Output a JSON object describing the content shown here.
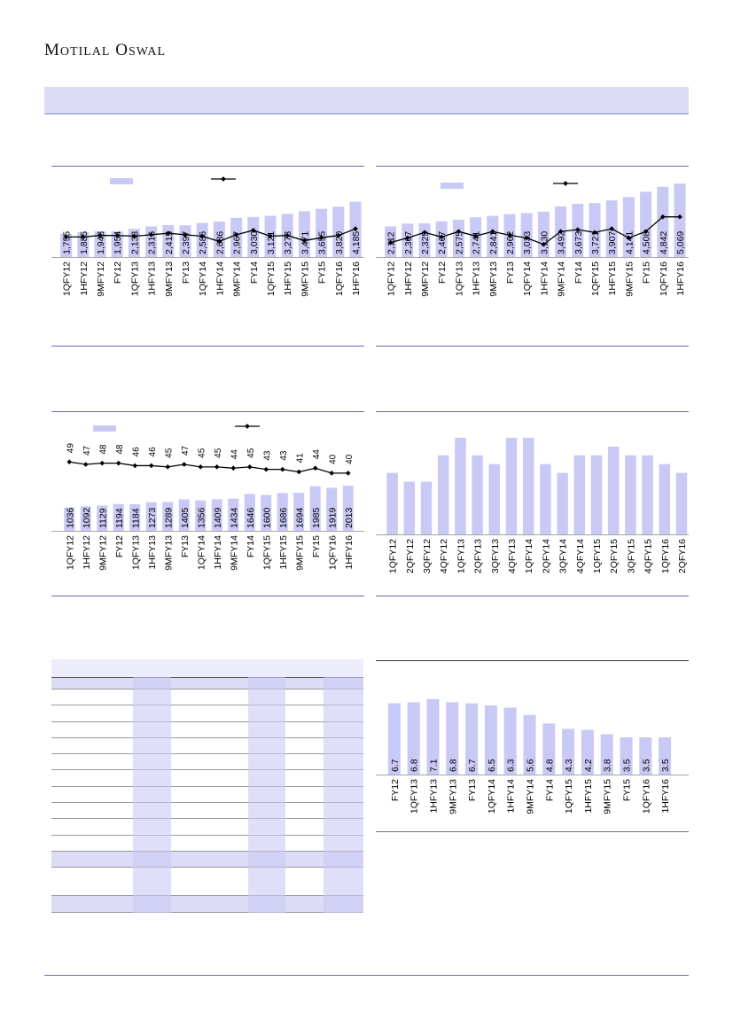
{
  "header": {
    "brand_first_1": "M",
    "brand_rest_1": "OTILAL",
    "brand_first_2": "O",
    "brand_rest_2": "SWAL"
  },
  "colors": {
    "bar": "#c9c9f5",
    "line": "#000000",
    "rule": "#6b6bb0",
    "band": "#dcdcf6"
  },
  "charts": [
    {
      "id": "chart1",
      "chart_data": {
        "type": "bar",
        "categories": [
          "1QFY12",
          "1HFY12",
          "9MFY12",
          "FY12",
          "1QFY13",
          "1HFY13",
          "9MFY13",
          "FY13",
          "1QFY14",
          "1HFY14",
          "9MFY14",
          "FY14",
          "1QFY15",
          "1HFY15",
          "9MFY15",
          "FY15",
          "1QFY16",
          "1HFY16"
        ],
        "values": [
          1755,
          1885,
          1943,
          1954,
          2133,
          2316,
          2415,
          2397,
          2586,
          2686,
          2967,
          3030,
          3121,
          3273,
          3471,
          3655,
          3820,
          4185
        ],
        "labels": [
          "1,755",
          "1,885",
          "1,943",
          "1,954",
          "2,133",
          "2,316",
          "2,415",
          "2,397",
          "2,586",
          "2,686",
          "2,967",
          "3,030",
          "3,121",
          "3,273",
          "3,471",
          "3,655",
          "3,820",
          "4,185"
        ],
        "line_values": [
          51,
          51,
          53,
          53,
          52,
          54,
          56,
          54,
          52,
          45,
          54,
          60,
          52,
          53,
          46,
          50,
          53,
          62
        ],
        "line_labels": [],
        "ylim": [
          0,
          4500
        ],
        "line_ylim": [
          0,
          100
        ]
      }
    },
    {
      "id": "chart2",
      "chart_data": {
        "type": "bar",
        "categories": [
          "1QFY12",
          "1HFY12",
          "9MFY12",
          "FY12",
          "1QFY13",
          "1HFY13",
          "9MFY13",
          "FY13",
          "1QFY14",
          "1HFY14",
          "9MFY14",
          "FY14",
          "1QFY15",
          "1HFY15",
          "9MFY15",
          "FY15",
          "1QFY16",
          "1HFY16"
        ],
        "values": [
          2112,
          2307,
          2325,
          2467,
          2575,
          2741,
          2841,
          2962,
          3033,
          3130,
          3492,
          3673,
          3721,
          3907,
          4141,
          4508,
          4842,
          5069
        ],
        "labels": [
          "2,112",
          "2,307",
          "2,325",
          "2,467",
          "2,575",
          "2,741",
          "2,841",
          "2,962",
          "3,033",
          "3,130",
          "3,492",
          "3,673",
          "3,721",
          "3,907",
          "4,141",
          "4,508",
          "4,842",
          "5,069"
        ],
        "line_values": [
          40,
          45,
          51,
          46,
          52,
          47,
          52,
          48,
          45,
          38,
          52,
          54,
          51,
          55,
          45,
          52,
          68,
          68
        ],
        "line_labels": [],
        "ylim": [
          0,
          5200
        ],
        "line_ylim": [
          0,
          100
        ]
      }
    },
    {
      "id": "chart3",
      "chart_data": {
        "type": "bar",
        "categories": [
          "1QFY12",
          "1HFY12",
          "9MFY12",
          "FY12",
          "1QFY13",
          "1HFY13",
          "9MFY13",
          "FY13",
          "1QFY14",
          "1HFY14",
          "9MFY14",
          "FY14",
          "1QFY15",
          "1HFY15",
          "9MFY15",
          "FY15",
          "1QFY16",
          "1HFY16"
        ],
        "values": [
          1036,
          1092,
          1129,
          1194,
          1184,
          1273,
          1289,
          1405,
          1356,
          1409,
          1434,
          1646,
          1600,
          1686,
          1694,
          1985,
          1919,
          2013
        ],
        "labels": [
          "1036",
          "1092",
          "1129",
          "1194",
          "1184",
          "1273",
          "1289",
          "1405",
          "1356",
          "1409",
          "1434",
          "1646",
          "1600",
          "1686",
          "1694",
          "1985",
          "1919",
          "2013"
        ],
        "line_values": [
          49,
          47,
          48,
          48,
          46,
          46,
          45,
          47,
          45,
          45,
          44,
          45,
          43,
          43,
          41,
          44,
          40,
          40
        ],
        "line_labels": [
          "49",
          "47",
          "48",
          "48",
          "46",
          "46",
          "45",
          "47",
          "45",
          "45",
          "44",
          "45",
          "43",
          "43",
          "41",
          "44",
          "40",
          "40"
        ],
        "ylim": [
          0,
          3000
        ],
        "line_ylim": [
          20,
          52
        ]
      }
    },
    {
      "id": "chart4",
      "chart_data": {
        "type": "bar",
        "categories": [
          "1QFY12",
          "2QFY12",
          "3QFY12",
          "4QFY12",
          "1QFY13",
          "2QFY13",
          "3QFY13",
          "4QFY13",
          "1QFY14",
          "2QFY14",
          "3QFY14",
          "4QFY14",
          "1QFY15",
          "2QFY15",
          "3QFY15",
          "4QFY15",
          "1QFY16",
          "2QFY16"
        ],
        "values": [
          7,
          6,
          6,
          9,
          11,
          9,
          8,
          11,
          11,
          8,
          7,
          9,
          9,
          10,
          9,
          9,
          8,
          7
        ],
        "labels": [],
        "line_values": [],
        "line_labels": [],
        "ylim": [
          0,
          11.5
        ],
        "line_ylim": [
          0,
          1
        ]
      }
    },
    {
      "id": "chart5",
      "chart_data": {
        "type": "bar",
        "categories": [
          "FY12",
          "1QFY13",
          "1HFY13",
          "9MFY13",
          "FY13",
          "1QFY14",
          "1HFY14",
          "9MFY14",
          "FY14",
          "1QFY15",
          "1HFY15",
          "9MFY15",
          "FY15",
          "1QFY16",
          "1HFY16"
        ],
        "values": [
          6.7,
          6.8,
          7.1,
          6.8,
          6.7,
          6.5,
          6.3,
          5.6,
          4.8,
          4.3,
          4.2,
          3.8,
          3.5,
          3.5,
          3.5
        ],
        "labels": [
          "6.7",
          "6.8",
          "7.1",
          "6.8",
          "6.7",
          "6.5",
          "6.3",
          "5.6",
          "4.8",
          "4.3",
          "4.2",
          "3.8",
          "3.5",
          "3.5",
          "3.5"
        ],
        "line_values": [],
        "line_labels": [],
        "ylim": [
          0,
          7.5
        ],
        "line_ylim": [
          0,
          1
        ]
      }
    }
  ]
}
